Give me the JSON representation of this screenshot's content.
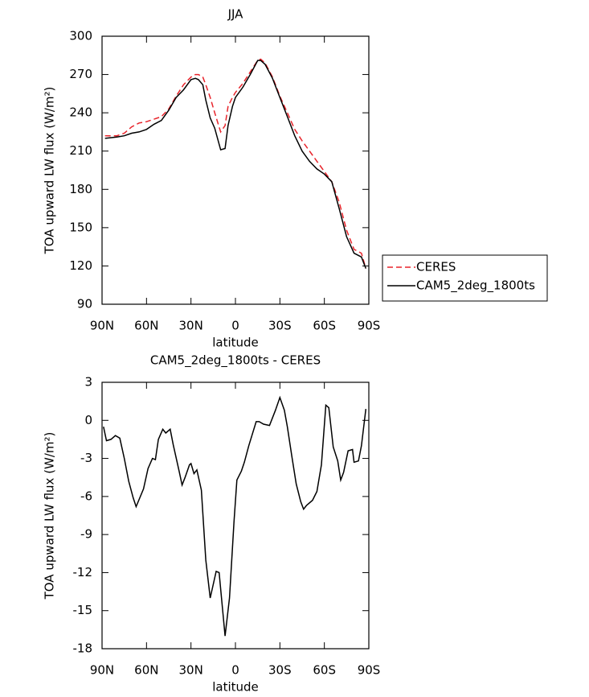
{
  "chart_data": [
    {
      "type": "line",
      "title": "JJA",
      "xlabel": "latitude",
      "ylabel": "TOA upward LW flux (W/m²)",
      "x": [
        88,
        80,
        75,
        70,
        65,
        60,
        55,
        50,
        45,
        40,
        35,
        30,
        27,
        25,
        22,
        20,
        17,
        14,
        10,
        7,
        5,
        2,
        0,
        -5,
        -10,
        -15,
        -17,
        -20,
        -25,
        -30,
        -35,
        -40,
        -45,
        -50,
        -55,
        -60,
        -65,
        -70,
        -75,
        -80,
        -85,
        -88
      ],
      "series": [
        {
          "name": "CERES",
          "color": "#e8242b",
          "dash": true,
          "values": [
            222,
            222,
            224,
            229,
            232,
            233,
            235,
            237,
            243,
            253,
            262,
            268,
            270,
            270,
            268,
            262,
            252,
            240,
            225,
            230,
            245,
            252,
            256,
            263,
            272,
            281,
            282,
            279,
            268,
            253,
            240,
            227,
            218,
            210,
            202,
            194,
            186,
            170,
            148,
            133,
            130,
            118
          ]
        },
        {
          "name": "CAM5_2deg_1800ts",
          "color": "#000000",
          "dash": false,
          "values": [
            220,
            221,
            222,
            224,
            225,
            227,
            231,
            234,
            242,
            252,
            258,
            266,
            267,
            266,
            262,
            250,
            236,
            228,
            211,
            212,
            230,
            245,
            252,
            260,
            270,
            281,
            281,
            278,
            267,
            252,
            237,
            222,
            210,
            202,
            196,
            192,
            186,
            165,
            143,
            130,
            127,
            118
          ]
        }
      ],
      "xlim": [
        90,
        -90
      ],
      "xticks": [
        {
          "value": 90,
          "label": "90N"
        },
        {
          "value": 60,
          "label": "60N"
        },
        {
          "value": 30,
          "label": "30N"
        },
        0,
        {
          "value": -30,
          "label": "30S"
        },
        {
          "value": -60,
          "label": "60S"
        },
        {
          "value": -90,
          "label": "90S"
        }
      ],
      "ylim": [
        90,
        300
      ],
      "yticks": [
        90,
        120,
        150,
        180,
        210,
        240,
        270,
        300
      ],
      "legend": "right"
    },
    {
      "type": "line",
      "title": "CAM5_2deg_1800ts - CERES",
      "xlabel": "latitude",
      "ylabel": "TOA upward LW flux (W/m²)",
      "x": [
        89,
        87,
        84,
        81,
        78,
        75,
        72,
        69,
        67,
        62,
        59,
        56,
        54,
        52,
        49,
        47,
        44,
        42,
        38,
        36,
        34,
        31,
        30,
        28,
        26,
        23,
        20,
        17,
        13,
        11,
        7,
        4,
        1,
        -1,
        -4,
        -6,
        -9,
        -14,
        -16,
        -19,
        -23,
        -27,
        -30,
        -33,
        -35,
        -38,
        -41,
        -44,
        -46,
        -48,
        -52,
        -55,
        -58,
        -61,
        -63,
        -66,
        -69,
        -71,
        -73,
        -76,
        -79,
        -80,
        -83,
        -85,
        -88
      ],
      "color": "#000000",
      "values": [
        -0.5,
        -1.6,
        -1.5,
        -1.2,
        -1.4,
        -3,
        -4.8,
        -6.1,
        -6.8,
        -5.4,
        -3.8,
        -3,
        -3.1,
        -1.5,
        -0.7,
        -1,
        -0.7,
        -1.9,
        -4,
        -5.1,
        -4.5,
        -3.5,
        -3.4,
        -4.2,
        -3.9,
        -5.5,
        -11,
        -14,
        -11.9,
        -12,
        -17,
        -14,
        -8,
        -4.7,
        -4,
        -3.3,
        -2,
        -0.1,
        -0.1,
        -0.3,
        -0.4,
        0.8,
        1.8,
        0.8,
        -0.5,
        -2.8,
        -5,
        -6.4,
        -7,
        -6.7,
        -6.3,
        -5.6,
        -3.5,
        1.2,
        1,
        -2.1,
        -3.2,
        -4.7,
        -4.1,
        -2.4,
        -2.3,
        -3.3,
        -3.2,
        -2,
        0.9
      ],
      "xlim": [
        90,
        -90
      ],
      "xticks": [
        {
          "value": 90,
          "label": "90N"
        },
        {
          "value": 60,
          "label": "60N"
        },
        {
          "value": 30,
          "label": "30N"
        },
        0,
        {
          "value": -30,
          "label": "30S"
        },
        {
          "value": -60,
          "label": "60S"
        },
        {
          "value": -90,
          "label": "90S"
        }
      ],
      "ylim": [
        -18,
        3
      ],
      "yticks": [
        -18,
        -15,
        -12,
        -9,
        -6,
        -3,
        0,
        3
      ]
    }
  ]
}
